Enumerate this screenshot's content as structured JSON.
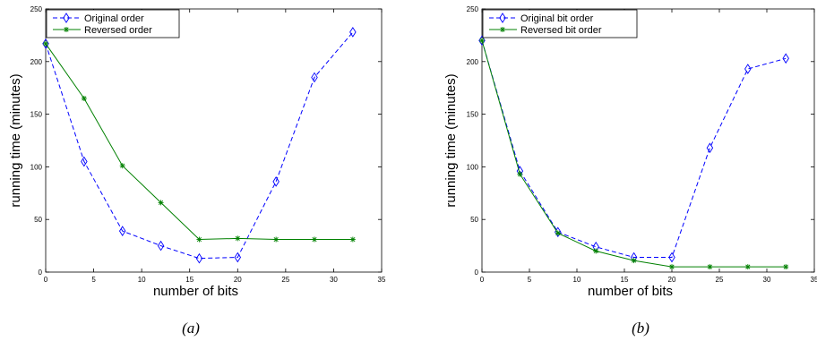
{
  "chart_data": [
    {
      "type": "line",
      "caption": "(a)",
      "xlabel": "number of bits",
      "ylabel": "running time (minutes)",
      "xlim": [
        0,
        35
      ],
      "ylim": [
        0,
        250
      ],
      "xticks": [
        0,
        5,
        10,
        15,
        20,
        25,
        30,
        35
      ],
      "yticks": [
        0,
        50,
        100,
        150,
        200,
        250
      ],
      "legend_position": "top-left",
      "series": [
        {
          "name": "Original order",
          "color": "#0000ff",
          "line_style": "dashed",
          "marker": "diamond",
          "x": [
            0,
            4,
            8,
            12,
            16,
            20,
            24,
            28,
            32
          ],
          "values": [
            217,
            105,
            39,
            25,
            13,
            14,
            86,
            185,
            228
          ]
        },
        {
          "name": "Reversed order",
          "color": "#008000",
          "line_style": "solid",
          "marker": "asterisk",
          "x": [
            0,
            4,
            8,
            12,
            16,
            20,
            24,
            28,
            32
          ],
          "values": [
            217,
            165,
            101,
            66,
            31,
            32,
            31,
            31,
            31
          ]
        }
      ]
    },
    {
      "type": "line",
      "caption": "(b)",
      "xlabel": "number of bits",
      "ylabel": "running time (minutes)",
      "xlim": [
        0,
        35
      ],
      "ylim": [
        0,
        250
      ],
      "xticks": [
        0,
        5,
        10,
        15,
        20,
        25,
        30,
        35
      ],
      "yticks": [
        0,
        50,
        100,
        150,
        200,
        250
      ],
      "legend_position": "top-left",
      "series": [
        {
          "name": "Original bit order",
          "color": "#0000ff",
          "line_style": "dashed",
          "marker": "diamond",
          "x": [
            0,
            4,
            8,
            12,
            16,
            20,
            24,
            28,
            32
          ],
          "values": [
            220,
            96,
            38,
            24,
            14,
            14,
            118,
            193,
            203
          ]
        },
        {
          "name": "Reversed bit order",
          "color": "#008000",
          "line_style": "solid",
          "marker": "asterisk",
          "x": [
            0,
            4,
            8,
            12,
            16,
            20,
            24,
            28,
            32
          ],
          "values": [
            220,
            93,
            37,
            20,
            11,
            5,
            5,
            5,
            5
          ]
        }
      ]
    }
  ]
}
